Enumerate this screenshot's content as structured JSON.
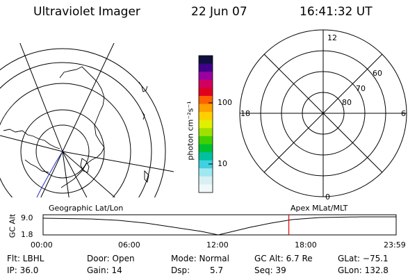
{
  "header": {
    "title": "Ultraviolet Imager",
    "date": "22 Jun 07",
    "time": "16:41:32 UT"
  },
  "colorbar": {
    "unit_label": "photon cm⁻²s⁻¹",
    "ticks": [
      {
        "value": 100,
        "label": "100"
      },
      {
        "value": 10,
        "label": "10"
      }
    ],
    "colors": [
      "#101040",
      "#40008a",
      "#9a00a0",
      "#d00060",
      "#e00020",
      "#ff6000",
      "#ffa000",
      "#ffd000",
      "#e0f000",
      "#a0e000",
      "#40d000",
      "#00c030",
      "#00c0a0",
      "#40d0e0",
      "#a0e8f0",
      "#d8f0f4",
      "#f0f8fa"
    ]
  },
  "polar_grid": {
    "mlt_labels": {
      "top": "12",
      "left": "18",
      "right": "6",
      "bottom": "0"
    },
    "lat_labels": [
      "60",
      "70",
      "80"
    ]
  },
  "timeline": {
    "y_axis_label": "GC Alt",
    "y_ticks": [
      "9.0",
      "1.8"
    ],
    "left_caption": "Geographic Lat/Lon",
    "right_caption": "Apex MLat/MLT",
    "x_ticks": [
      "00:00",
      "06:00",
      "12:00",
      "18:00",
      "23:59"
    ],
    "marker_time": "16:41:32",
    "marker_color": "#e00000"
  },
  "status": {
    "row1": {
      "flt": "Flt: LBHL",
      "door": "Door: Open",
      "mode": "Mode: Normal",
      "gcalt": "GC Alt: 6.7 Re",
      "glat": "GLat: −75.1"
    },
    "row2": {
      "ip": "IP: 36.0",
      "gain": "Gain: 14",
      "dsp_label": "Dsp:",
      "dsp_value": "5.7",
      "seq": "Seq: 39",
      "glon": "GLon: 132.8"
    }
  }
}
